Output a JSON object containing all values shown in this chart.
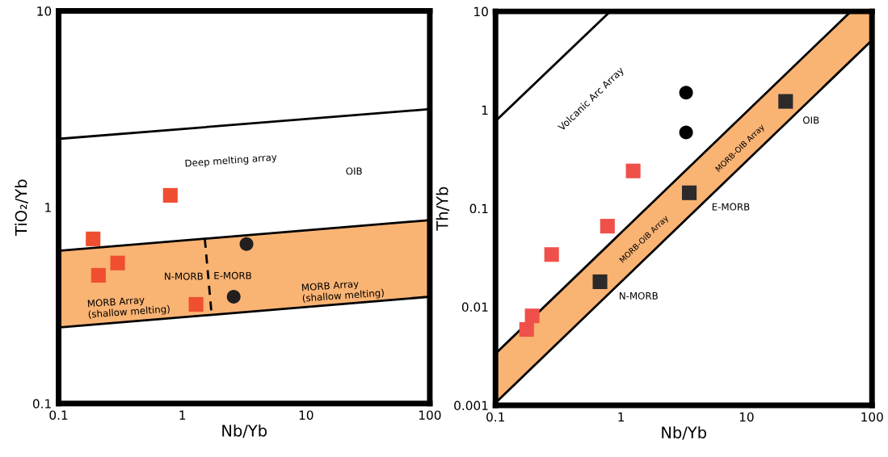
{
  "chart_data": [
    {
      "type": "scatter",
      "xlabel": "Nb/Yb",
      "ylabel": "TiO₂/Yb",
      "log": "xy",
      "xlim": [
        0.1,
        100
      ],
      "ylim": [
        0.1,
        10
      ],
      "xticks": [
        0.1,
        1,
        10,
        100
      ],
      "yticks": [
        0.1,
        1,
        10
      ],
      "grid": false,
      "series": [
        {
          "type": "line",
          "color": "#000000",
          "x": [
            0.1,
            100
          ],
          "values": [
            0.6,
            0.86
          ],
          "lower": [
            0.244,
            0.35
          ],
          "upper": [
            0.6,
            0.86
          ],
          "line_style": "solid"
        },
        {
          "type": "line",
          "color": "#000000",
          "x": [
            0.1,
            100
          ],
          "values": [
            0.244,
            0.35
          ],
          "line_style": "solid"
        },
        {
          "type": "line",
          "color": "#000000",
          "x": [
            0.1,
            100
          ],
          "values": [
            2.23,
            3.16
          ],
          "line_style": "solid"
        },
        {
          "type": "line",
          "color": "#000000",
          "x": [
            1.52,
            1.72
          ],
          "values": [
            0.69,
            0.29
          ],
          "line_style": "dashed"
        },
        {
          "type": "scatter",
          "color": "#f04e30",
          "marker": "square",
          "x": [
            0.19,
            0.21,
            0.3,
            0.8,
            1.29
          ],
          "values": [
            0.69,
            0.45,
            0.52,
            1.15,
            0.32
          ]
        },
        {
          "type": "scatter",
          "color": "#231f20",
          "marker": "circle",
          "x": [
            3.3,
            2.6
          ],
          "values": [
            0.65,
            0.35
          ]
        }
      ],
      "annotations": [
        "Deep melting array",
        "OIB",
        "N-MORB",
        "E-MORB",
        "MORB Array\n(shallow melting)",
        "MORB Array\n(shallow melting)"
      ]
    },
    {
      "type": "scatter",
      "xlabel": "Nb/Yb",
      "ylabel": "Th/Yb",
      "log": "xy",
      "xlim": [
        0.1,
        100
      ],
      "ylim": [
        0.001,
        10
      ],
      "xticks": [
        0.1,
        1,
        10,
        100
      ],
      "yticks": [
        0.001,
        0.01,
        0.1,
        1,
        10
      ],
      "grid": false,
      "series": [
        {
          "type": "line",
          "color": "#000000",
          "x": [
            0.1,
            67.8,
            100
          ],
          "values": [
            0.00335,
            10,
            10
          ],
          "lower": [
            0.00106,
            3.2,
            5.1
          ],
          "upper": [
            0.00335,
            10,
            10
          ],
          "line_style": "solid"
        },
        {
          "type": "line",
          "color": "#000000",
          "x": [
            0.1,
            100
          ],
          "values": [
            0.00106,
            5.1
          ],
          "line_style": "solid"
        },
        {
          "type": "line",
          "color": "#000000",
          "x": [
            0.1,
            0.82
          ],
          "values": [
            0.77,
            10
          ],
          "line_style": "solid"
        },
        {
          "type": "scatter",
          "color": "#f0504a",
          "marker": "square",
          "x": [
            0.177,
            0.196,
            0.28,
            0.78,
            1.25
          ],
          "values": [
            0.0059,
            0.0081,
            0.034,
            0.066,
            0.24
          ]
        },
        {
          "type": "scatter",
          "color": "#000000",
          "marker": "circle",
          "x": [
            3.3,
            3.3
          ],
          "values": [
            1.5,
            0.59
          ]
        },
        {
          "type": "scatter",
          "color": "#2d2a2b",
          "marker": "square",
          "x": [
            0.68,
            3.5,
            20.5
          ],
          "values": [
            0.018,
            0.144,
            1.22
          ]
        }
      ],
      "annotations": [
        "Volcanic Arc Array",
        "MORB-OIB Array",
        "MORB-OIB Array",
        "N-MORB",
        "E-MORB",
        "OIB"
      ]
    }
  ]
}
